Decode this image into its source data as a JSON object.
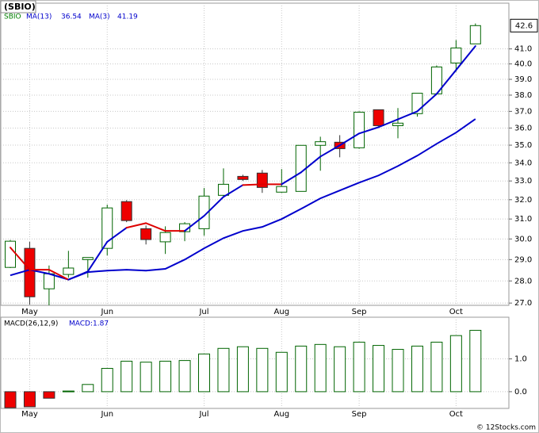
{
  "chart_data": [
    {
      "type": "candlestick",
      "title": "(SBIO)",
      "symbol": "SBIO",
      "symbol_color": "#008000",
      "categories": [
        null,
        "May",
        null,
        null,
        null,
        "Jun",
        null,
        null,
        null,
        null,
        "Jul",
        null,
        null,
        null,
        "Aug",
        null,
        null,
        null,
        "Sep",
        null,
        null,
        null,
        null,
        "Oct",
        null
      ],
      "open": [
        28.63,
        29.54,
        27.64,
        28.3,
        29.0,
        29.54,
        31.9,
        30.51,
        29.86,
        30.36,
        30.51,
        32.23,
        33.25,
        33.43,
        32.4,
        32.44,
        34.99,
        35.17,
        34.85,
        37.1,
        36.14,
        36.86,
        38.08,
        40.06,
        41.34
      ],
      "high": [
        29.95,
        29.86,
        28.72,
        29.42,
        29.1,
        31.74,
        31.98,
        30.67,
        30.63,
        30.84,
        32.62,
        33.69,
        33.34,
        33.6,
        33.65,
        35.0,
        35.49,
        35.58,
        37.0,
        37.1,
        37.2,
        38.12,
        39.9,
        41.6,
        42.75
      ],
      "low": [
        28.6,
        26.93,
        26.9,
        28.15,
        28.15,
        29.2,
        30.84,
        29.73,
        29.27,
        29.89,
        30.16,
        32.2,
        33.0,
        32.36,
        32.36,
        32.44,
        33.56,
        34.31,
        34.8,
        36.1,
        35.4,
        36.68,
        38.05,
        39.49,
        41.34
      ],
      "close": [
        29.89,
        27.28,
        28.33,
        28.6,
        29.1,
        31.57,
        30.92,
        29.97,
        30.32,
        30.76,
        32.19,
        32.82,
        33.08,
        32.65,
        32.7,
        34.99,
        35.2,
        34.8,
        36.95,
        36.14,
        36.29,
        38.12,
        39.8,
        41.06,
        42.6
      ],
      "up_color": "#006400",
      "down_color": "#ee0000",
      "series": [
        {
          "name": "MA(13)",
          "color": "#0000cc",
          "values": [
            28.26,
            28.52,
            28.33,
            28.06,
            28.41,
            28.48,
            28.52,
            28.48,
            28.56,
            29.0,
            29.54,
            30.04,
            30.4,
            30.6,
            31.0,
            31.52,
            32.07,
            32.49,
            32.91,
            33.3,
            33.82,
            34.4,
            35.08,
            35.73,
            36.54
          ]
        },
        {
          "name": "MA(3)",
          "color": "#0000cc",
          "values": [
            29.58,
            28.52,
            28.52,
            28.06,
            28.44,
            29.86,
            30.56,
            30.79,
            30.4,
            30.4,
            31.16,
            32.15,
            32.78,
            32.82,
            32.82,
            33.47,
            34.35,
            34.99,
            35.68,
            36.05,
            36.52,
            37.0,
            38.08,
            39.6,
            41.19
          ],
          "segment_colors": [
            "#dd0000",
            "#dd0000",
            "#dd0000",
            "#0000cc",
            "#0000cc",
            "#0000cc",
            "#dd0000",
            "#dd0000",
            "#dd0000",
            "#0000cc",
            "#0000cc",
            "#0000cc",
            "#dd0000",
            "#dd0000",
            "#0000cc",
            "#0000cc",
            "#0000cc",
            "#0000cc",
            "#0000cc",
            "#0000cc",
            "#0000cc",
            "#0000cc",
            "#0000cc",
            "#0000cc"
          ]
        }
      ],
      "log_scale": true,
      "grid": true,
      "ylim": [
        26.9,
        44.2
      ],
      "yticks": [
        {
          "value": 27,
          "label": "27.0"
        },
        {
          "value": 28,
          "label": "28.0"
        },
        {
          "value": 29,
          "label": "29.0"
        },
        {
          "value": 30,
          "label": "30.0"
        },
        {
          "value": 31,
          "label": "31.0"
        },
        {
          "value": 32,
          "label": "32.0"
        },
        {
          "value": 33,
          "label": "33.0"
        },
        {
          "value": 34,
          "label": "34.0"
        },
        {
          "value": 35,
          "label": "35.0"
        },
        {
          "value": 36,
          "label": "36.0"
        },
        {
          "value": 37,
          "label": "37.0"
        },
        {
          "value": 38,
          "label": "38.0"
        },
        {
          "value": 39,
          "label": "39.0"
        },
        {
          "value": 40,
          "label": "40.0"
        },
        {
          "value": 41,
          "label": "41.0"
        }
      ]
    },
    {
      "type": "bar",
      "title": "MACD(26,12,9)",
      "value_label": "MACD:1.87",
      "label_color": "#0000cc",
      "categories": [
        null,
        "May",
        null,
        null,
        null,
        "Jun",
        null,
        null,
        null,
        null,
        "Jul",
        null,
        null,
        null,
        "Aug",
        null,
        null,
        null,
        "Sep",
        null,
        null,
        null,
        null,
        "Oct",
        null
      ],
      "values": [
        -0.49,
        -0.46,
        -0.2,
        0.02,
        0.22,
        0.71,
        0.93,
        0.9,
        0.93,
        0.95,
        1.15,
        1.32,
        1.37,
        1.32,
        1.2,
        1.39,
        1.44,
        1.37,
        1.51,
        1.41,
        1.29,
        1.39,
        1.51,
        1.71,
        1.87
      ],
      "up_color": "#006400",
      "down_color": "#ee0000",
      "grid": true,
      "ylim": [
        -0.51,
        2.27
      ],
      "yticks": [
        {
          "value": 0,
          "label": "0.0"
        },
        {
          "value": 1,
          "label": "1.0"
        }
      ]
    },
    {
      "type": "note",
      "title": "© 12Stocks.com"
    }
  ]
}
